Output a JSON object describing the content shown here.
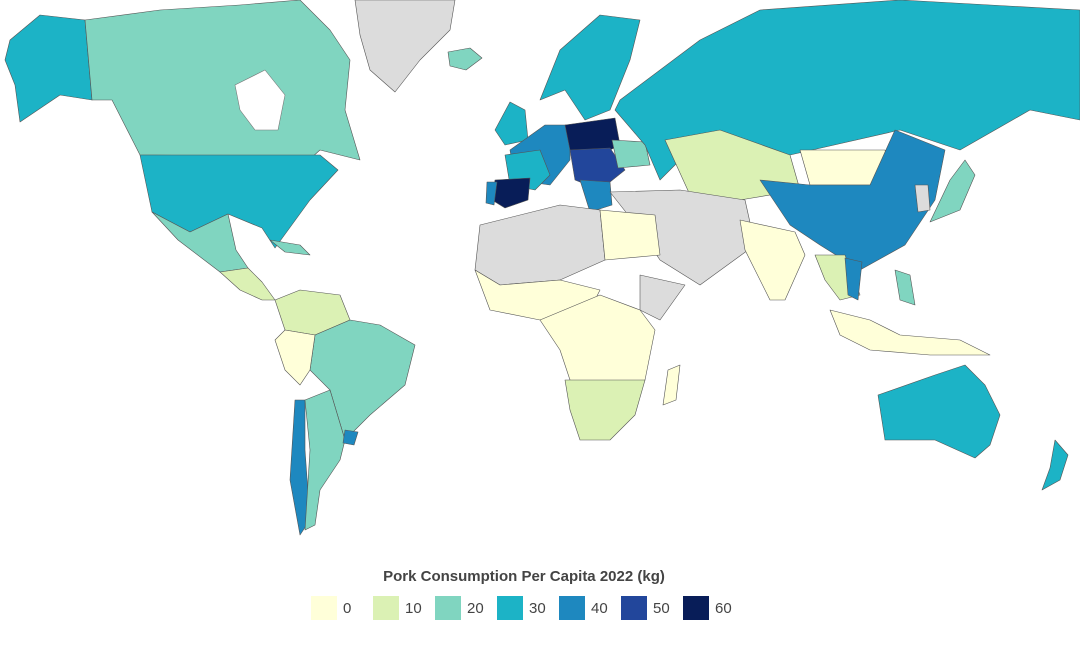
{
  "legend": {
    "title": "Pork Consumption Per Capita 2022 (kg)",
    "items": [
      {
        "value": 0,
        "color": "#ffffd9"
      },
      {
        "value": 10,
        "color": "#dbf1b4"
      },
      {
        "value": 20,
        "color": "#80d5c0"
      },
      {
        "value": 30,
        "color": "#1cb3c6"
      },
      {
        "value": 40,
        "color": "#1e88bf"
      },
      {
        "value": 50,
        "color": "#22469b"
      },
      {
        "value": 60,
        "color": "#081d58"
      }
    ]
  }
}
